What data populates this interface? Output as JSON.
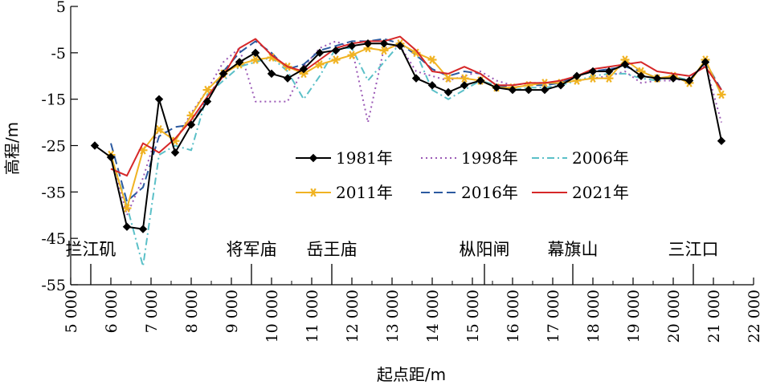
{
  "chart_data": {
    "type": "line",
    "xlabel": "起点距/m",
    "ylabel": "高程/m",
    "xlim": [
      5000,
      22000
    ],
    "ylim": [
      -55,
      5
    ],
    "x_ticks": [
      5000,
      6000,
      7000,
      8000,
      9000,
      10000,
      11000,
      12000,
      13000,
      14000,
      15000,
      16000,
      17000,
      18000,
      19000,
      20000,
      21000,
      22000
    ],
    "x_tick_labels": [
      "5 000",
      "6 000",
      "7 000",
      "8 000",
      "9 000",
      "10 000",
      "11 000",
      "12 000",
      "13 000",
      "14 000",
      "15 000",
      "16 000",
      "17 000",
      "18 000",
      "19 000",
      "20 000",
      "21 000",
      "22 000"
    ],
    "y_ticks": [
      5,
      -5,
      -15,
      -25,
      -35,
      -45,
      -55
    ],
    "y_tick_labels": [
      "5",
      "-5",
      "-15",
      "-25",
      "-35",
      "-45",
      "-55"
    ],
    "grid": false,
    "legend_position": "center",
    "place_names": [
      {
        "label": "拦江矶",
        "x": 5500
      },
      {
        "label": "将军庙",
        "x": 9500
      },
      {
        "label": "岳王庙",
        "x": 11500
      },
      {
        "label": "枞阳闸",
        "x": 15300
      },
      {
        "label": "幕旗山",
        "x": 17500
      },
      {
        "label": "三江口",
        "x": 20500
      }
    ],
    "series": [
      {
        "name": "1981年",
        "color": "#000000",
        "style": "solid-diamond",
        "x": [
          5600,
          6000,
          6400,
          6800,
          7200,
          7600,
          8000,
          8400,
          8800,
          9200,
          9600,
          10000,
          10400,
          10800,
          11200,
          11600,
          12000,
          12400,
          12800,
          13200,
          13600,
          14000,
          14400,
          14800,
          15200,
          15600,
          16000,
          16400,
          16800,
          17200,
          17600,
          18000,
          18400,
          18800,
          19200,
          19600,
          20000,
          20400,
          20800,
          21200
        ],
        "y": [
          -25,
          -27.5,
          -42.5,
          -43,
          -15,
          -26.5,
          -20.5,
          -15.5,
          -9.5,
          -7,
          -5,
          -9.5,
          -10.5,
          -8.5,
          -5,
          -4.5,
          -3.5,
          -3,
          -3,
          -3.5,
          -10.5,
          -12,
          -13.5,
          -12,
          -11,
          -12.5,
          -13,
          -13,
          -13,
          -12,
          -10,
          -9,
          -9,
          -7.5,
          -10,
          -10.5,
          -10.5,
          -11,
          -7,
          -24
        ]
      },
      {
        "name": "1998年",
        "color": "#9b59b6",
        "style": "dotted",
        "x": [
          6000,
          6400,
          6800,
          7200,
          7600,
          8000,
          8400,
          8800,
          9200,
          9600,
          10000,
          10400,
          10800,
          11200,
          11600,
          12000,
          12400,
          12800,
          13200,
          13600,
          14000,
          14400,
          14800,
          15200,
          15600,
          16000,
          16400,
          16800,
          17200,
          17600,
          18000,
          18400,
          18800,
          19200,
          19600,
          20000,
          20400,
          20800,
          21200
        ],
        "y": [
          -27,
          -40,
          -32,
          -21,
          -24,
          -18,
          -13,
          -7,
          -4,
          -15.5,
          -15.5,
          -15.5,
          -8,
          -4,
          -2.5,
          -4,
          -20,
          -4,
          -3.5,
          -9,
          -10,
          -11,
          -10,
          -9,
          -11,
          -12,
          -11.5,
          -11.5,
          -11.5,
          -11,
          -10.5,
          -10,
          -9,
          -11.5,
          -11,
          -11,
          -10.5,
          -7.5,
          -20
        ]
      },
      {
        "name": "2006年",
        "color": "#5bc0c8",
        "style": "dash-dot",
        "x": [
          6000,
          6400,
          6800,
          7200,
          7600,
          8000,
          8400,
          8800,
          9200,
          9600,
          10000,
          10400,
          10800,
          11200,
          11600,
          12000,
          12400,
          12800,
          13200,
          13600,
          14000,
          14400,
          14800,
          15200,
          15600,
          16000,
          16400,
          16800,
          17200,
          17600,
          18000,
          18400,
          18800,
          19200,
          19600,
          20000,
          20400,
          20800,
          21200
        ],
        "y": [
          -27,
          -38,
          -51,
          -27,
          -25,
          -26,
          -14,
          -11,
          -8,
          -7,
          -6,
          -9,
          -15,
          -10,
          -4,
          -4,
          -11,
          -7,
          -3,
          -5,
          -13,
          -15,
          -13,
          -11,
          -12,
          -13,
          -12.5,
          -12.5,
          -12,
          -11,
          -10,
          -9.5,
          -9.5,
          -10.5,
          -11,
          -10,
          -11,
          -7,
          -14
        ]
      },
      {
        "name": "2011年",
        "color": "#f0b323",
        "style": "solid-star",
        "x": [
          6000,
          6400,
          6800,
          7200,
          7600,
          8000,
          8400,
          8800,
          9200,
          9600,
          10000,
          10400,
          10800,
          11200,
          11600,
          12000,
          12400,
          12800,
          13200,
          13600,
          14000,
          14400,
          14800,
          15200,
          15600,
          16000,
          16400,
          16800,
          17200,
          17600,
          18000,
          18400,
          18800,
          19200,
          19600,
          20000,
          20400,
          20800,
          21200
        ],
        "y": [
          -27,
          -38.5,
          -26,
          -21.5,
          -24,
          -18.5,
          -13,
          -9.5,
          -7.5,
          -6.5,
          -6,
          -8,
          -9.5,
          -7.5,
          -6.5,
          -5.5,
          -4,
          -4.5,
          -3,
          -5,
          -6.5,
          -10.5,
          -10.5,
          -11,
          -12.5,
          -12.5,
          -12,
          -11.5,
          -11.5,
          -11,
          -10.5,
          -10.5,
          -6.5,
          -9,
          -10.5,
          -10,
          -11.5,
          -6.5,
          -14
        ]
      },
      {
        "name": "2016年",
        "color": "#2c5aa0",
        "style": "dashed",
        "x": [
          6000,
          6400,
          6800,
          7200,
          7600,
          8000,
          8400,
          8800,
          9200,
          9600,
          10000,
          10400,
          10800,
          11200,
          11600,
          12000,
          12400,
          12800,
          13200,
          13600,
          14000,
          14400,
          14800,
          15200,
          15600,
          16000,
          16400,
          16800,
          17200,
          17600,
          18000,
          18400,
          18800,
          19200,
          19600,
          20000,
          20400,
          20800,
          21200
        ],
        "y": [
          -24.5,
          -37,
          -34,
          -23,
          -21,
          -20.5,
          -15,
          -9,
          -5,
          -2.5,
          -5,
          -8.5,
          -7.5,
          -4.5,
          -3.5,
          -2.5,
          -2.5,
          -2,
          -3,
          -5.5,
          -8.5,
          -10,
          -9,
          -9.5,
          -12,
          -12.5,
          -12,
          -12,
          -11.5,
          -10,
          -9,
          -8.5,
          -8,
          -9,
          -10.5,
          -10.5,
          -11,
          -7,
          -13
        ]
      },
      {
        "name": "2021年",
        "color": "#d62728",
        "style": "solid",
        "x": [
          6000,
          6400,
          6800,
          7200,
          7600,
          8000,
          8400,
          8800,
          9200,
          9600,
          10000,
          10400,
          10800,
          11200,
          11600,
          12000,
          12400,
          12800,
          13200,
          13600,
          14000,
          14400,
          14800,
          15200,
          15600,
          16000,
          16400,
          16800,
          17200,
          17600,
          18000,
          18400,
          18800,
          19200,
          19600,
          20000,
          20400,
          20800,
          21200
        ],
        "y": [
          -30,
          -31.5,
          -24.5,
          -26.5,
          -23.5,
          -19.5,
          -14.5,
          -10,
          -4,
          -2,
          -5.5,
          -8,
          -9,
          -6.5,
          -4,
          -3,
          -2.5,
          -2.5,
          -1.5,
          -4.5,
          -9,
          -9.5,
          -8,
          -9.5,
          -12,
          -12,
          -11.5,
          -11.5,
          -11,
          -10,
          -8.5,
          -8,
          -7.5,
          -7,
          -9,
          -9.5,
          -10,
          -8,
          -13
        ]
      }
    ]
  }
}
